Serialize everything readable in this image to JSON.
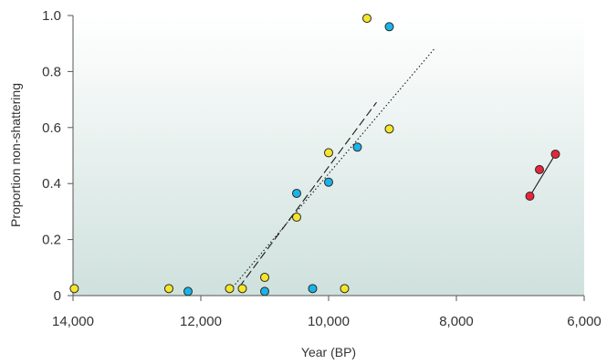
{
  "chart_data": {
    "type": "scatter",
    "xlabel": "Year (BP)",
    "ylabel": "Proportion non-shattering",
    "xlim": [
      14000,
      6000
    ],
    "ylim": [
      0,
      1.0
    ],
    "x_reversed": true,
    "grid": false,
    "legend": "none",
    "xticks": [
      {
        "value": 14000,
        "label": "14,000"
      },
      {
        "value": 12000,
        "label": "12,000"
      },
      {
        "value": 10000,
        "label": "10,000"
      },
      {
        "value": 8000,
        "label": "8,000"
      },
      {
        "value": 6000,
        "label": "6,000"
      }
    ],
    "yticks": [
      {
        "value": 0,
        "label": "0"
      },
      {
        "value": 0.2,
        "label": "0.2"
      },
      {
        "value": 0.4,
        "label": "0.4"
      },
      {
        "value": 0.6,
        "label": "0.6"
      },
      {
        "value": 0.8,
        "label": "0.8"
      },
      {
        "value": 1.0,
        "label": "1.0"
      }
    ],
    "series": [
      {
        "color": "#f5e629",
        "points": [
          {
            "x": 13980,
            "y": 0.025
          },
          {
            "x": 12500,
            "y": 0.025
          },
          {
            "x": 11550,
            "y": 0.025
          },
          {
            "x": 11350,
            "y": 0.025
          },
          {
            "x": 11000,
            "y": 0.065
          },
          {
            "x": 10500,
            "y": 0.28
          },
          {
            "x": 10000,
            "y": 0.51
          },
          {
            "x": 9750,
            "y": 0.025
          },
          {
            "x": 9400,
            "y": 0.99
          },
          {
            "x": 9050,
            "y": 0.595
          }
        ]
      },
      {
        "color": "#1ab3e8",
        "points": [
          {
            "x": 12200,
            "y": 0.015
          },
          {
            "x": 11000,
            "y": 0.015
          },
          {
            "x": 10500,
            "y": 0.365
          },
          {
            "x": 10250,
            "y": 0.025
          },
          {
            "x": 10000,
            "y": 0.405
          },
          {
            "x": 9550,
            "y": 0.53
          },
          {
            "x": 9050,
            "y": 0.96
          }
        ]
      },
      {
        "color": "#e8243a",
        "points": [
          {
            "x": 6850,
            "y": 0.355
          },
          {
            "x": 6700,
            "y": 0.45
          },
          {
            "x": 6450,
            "y": 0.505
          }
        ]
      }
    ],
    "trend_lines": [
      {
        "style": "dotted",
        "from": {
          "x": 11500,
          "y": 0.03
        },
        "to": {
          "x": 8350,
          "y": 0.88
        }
      },
      {
        "style": "dashed",
        "from": {
          "x": 11400,
          "y": 0.03
        },
        "to": {
          "x": 9250,
          "y": 0.69
        }
      },
      {
        "style": "solid",
        "from": {
          "x": 6850,
          "y": 0.355
        },
        "to": {
          "x": 6450,
          "y": 0.505
        }
      }
    ]
  }
}
